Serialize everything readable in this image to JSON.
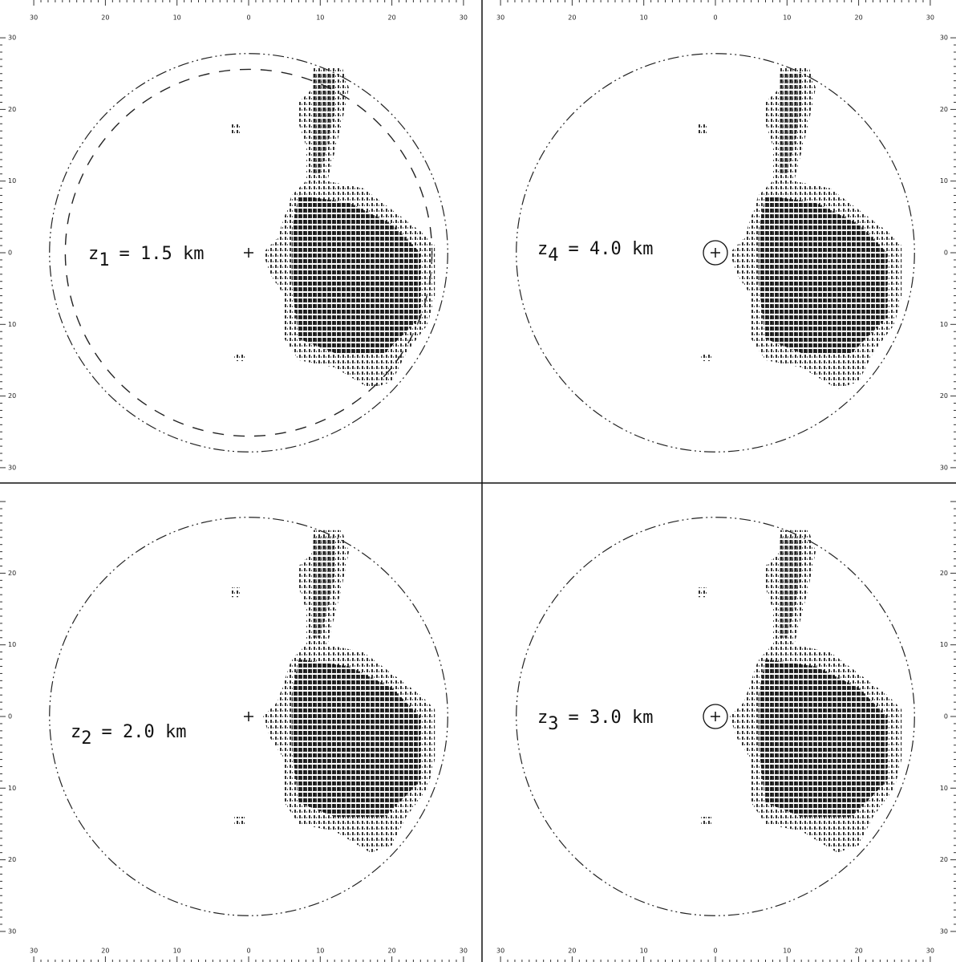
{
  "axis_labels": [
    "30",
    "20",
    "10",
    "0",
    "10",
    "20",
    "30"
  ],
  "panels": [
    {
      "symbol": "z",
      "subscript": "1",
      "value": "= 1.5 km"
    },
    {
      "symbol": "z",
      "subscript": "4",
      "value": "= 4.0 km"
    },
    {
      "symbol": "z",
      "subscript": "2",
      "value": "= 2.0 km"
    },
    {
      "symbol": "z",
      "subscript": "3",
      "value": "= 3.0 km"
    }
  ]
}
